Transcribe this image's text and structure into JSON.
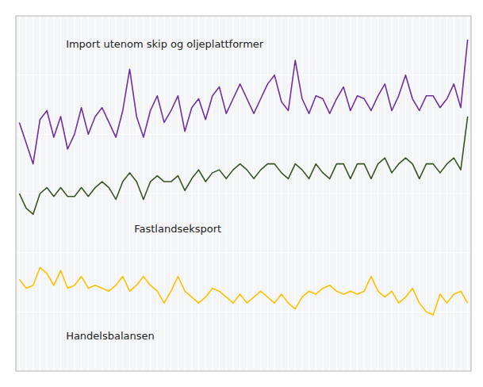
{
  "chart_data": {
    "type": "line",
    "x": [
      0,
      1,
      2,
      3,
      4,
      5,
      6,
      7,
      8,
      9,
      10,
      11,
      12,
      13,
      14,
      15,
      16,
      17,
      18,
      19,
      20,
      21,
      22,
      23,
      24,
      25,
      26,
      27,
      28,
      29,
      30,
      31,
      32,
      33,
      34,
      35,
      36,
      37,
      38,
      39,
      40,
      41,
      42,
      43,
      44,
      45,
      46,
      47,
      48,
      49,
      50,
      51,
      52,
      53,
      54,
      55,
      56,
      57,
      58,
      59,
      60,
      61,
      62,
      63,
      64,
      65
    ],
    "series": [
      {
        "name": "Import utenom skip og oljeplattformer",
        "color": "#7030a0",
        "values": [
          42.0,
          38.5,
          35.0,
          42.5,
          44.0,
          39.5,
          43.0,
          37.5,
          40.0,
          44.5,
          40.0,
          43.0,
          44.5,
          42.0,
          39.5,
          44.0,
          51.0,
          43.0,
          39.5,
          44.0,
          46.5,
          42.0,
          44.0,
          46.5,
          40.5,
          44.5,
          46.0,
          42.5,
          46.5,
          48.0,
          43.5,
          46.0,
          48.5,
          46.0,
          43.5,
          46.0,
          48.5,
          50.0,
          45.5,
          44.0,
          52.5,
          46.0,
          43.5,
          46.5,
          46.0,
          43.5,
          46.0,
          48.0,
          44.0,
          46.5,
          46.0,
          44.0,
          46.5,
          48.5,
          44.0,
          46.5,
          50.0,
          46.0,
          44.0,
          46.5,
          46.5,
          44.5,
          46.0,
          48.5,
          44.5,
          56.0
        ]
      },
      {
        "name": "Fastlandseksport",
        "color": "#375623",
        "values": [
          30.0,
          27.5,
          26.5,
          30.0,
          31.0,
          29.5,
          31.0,
          29.5,
          29.5,
          31.0,
          29.5,
          31.0,
          32.0,
          31.0,
          29.0,
          32.0,
          33.5,
          32.0,
          29.0,
          32.0,
          33.0,
          32.0,
          32.0,
          33.0,
          30.5,
          32.5,
          34.0,
          32.0,
          33.5,
          34.0,
          32.5,
          34.0,
          35.0,
          34.0,
          32.5,
          34.0,
          35.0,
          35.0,
          33.5,
          32.5,
          35.0,
          34.0,
          32.5,
          35.0,
          33.5,
          32.5,
          35.0,
          35.0,
          32.5,
          35.0,
          35.0,
          32.5,
          35.0,
          36.0,
          33.5,
          35.0,
          36.0,
          35.0,
          32.5,
          35.0,
          35.0,
          33.5,
          35.0,
          36.0,
          34.0,
          43.0
        ]
      },
      {
        "name": "Handelsbalansen",
        "color": "#ffc000",
        "values": [
          15.5,
          14.0,
          14.5,
          17.5,
          16.5,
          14.5,
          17.0,
          14.0,
          14.5,
          16.0,
          14.0,
          14.5,
          14.0,
          13.5,
          14.5,
          16.0,
          13.5,
          14.5,
          16.0,
          14.5,
          13.5,
          11.5,
          13.5,
          16.0,
          13.5,
          12.5,
          11.5,
          12.5,
          14.0,
          13.5,
          12.5,
          11.5,
          13.0,
          11.5,
          12.5,
          13.5,
          12.5,
          11.5,
          13.0,
          11.5,
          10.5,
          12.5,
          13.5,
          13.0,
          14.0,
          14.5,
          13.5,
          13.0,
          13.5,
          13.0,
          13.5,
          16.0,
          13.5,
          12.5,
          13.5,
          11.5,
          12.5,
          14.0,
          11.5,
          10.0,
          9.5,
          13.0,
          11.5,
          13.0,
          13.5,
          11.5
        ]
      }
    ],
    "xlim": [
      -0.5,
      65.5
    ],
    "xticks": [
      0,
      1,
      2,
      3,
      4,
      5,
      6,
      7,
      8,
      9,
      10,
      11,
      12,
      13,
      14,
      15,
      16,
      17,
      18,
      19,
      20,
      21,
      22,
      23,
      24,
      25,
      26,
      27,
      28,
      29,
      30,
      31,
      32,
      33,
      34,
      35,
      36,
      37,
      38,
      39,
      40,
      41,
      42,
      43,
      44,
      45,
      46,
      47,
      48,
      49,
      50,
      51,
      52,
      53,
      54,
      55,
      56,
      57,
      58,
      59,
      60,
      61,
      62,
      63,
      64,
      65
    ],
    "ylim": [
      0,
      60
    ],
    "yticks": [
      0,
      10,
      20,
      30,
      40,
      50,
      60
    ],
    "grid": true,
    "tick_labels": false
  }
}
